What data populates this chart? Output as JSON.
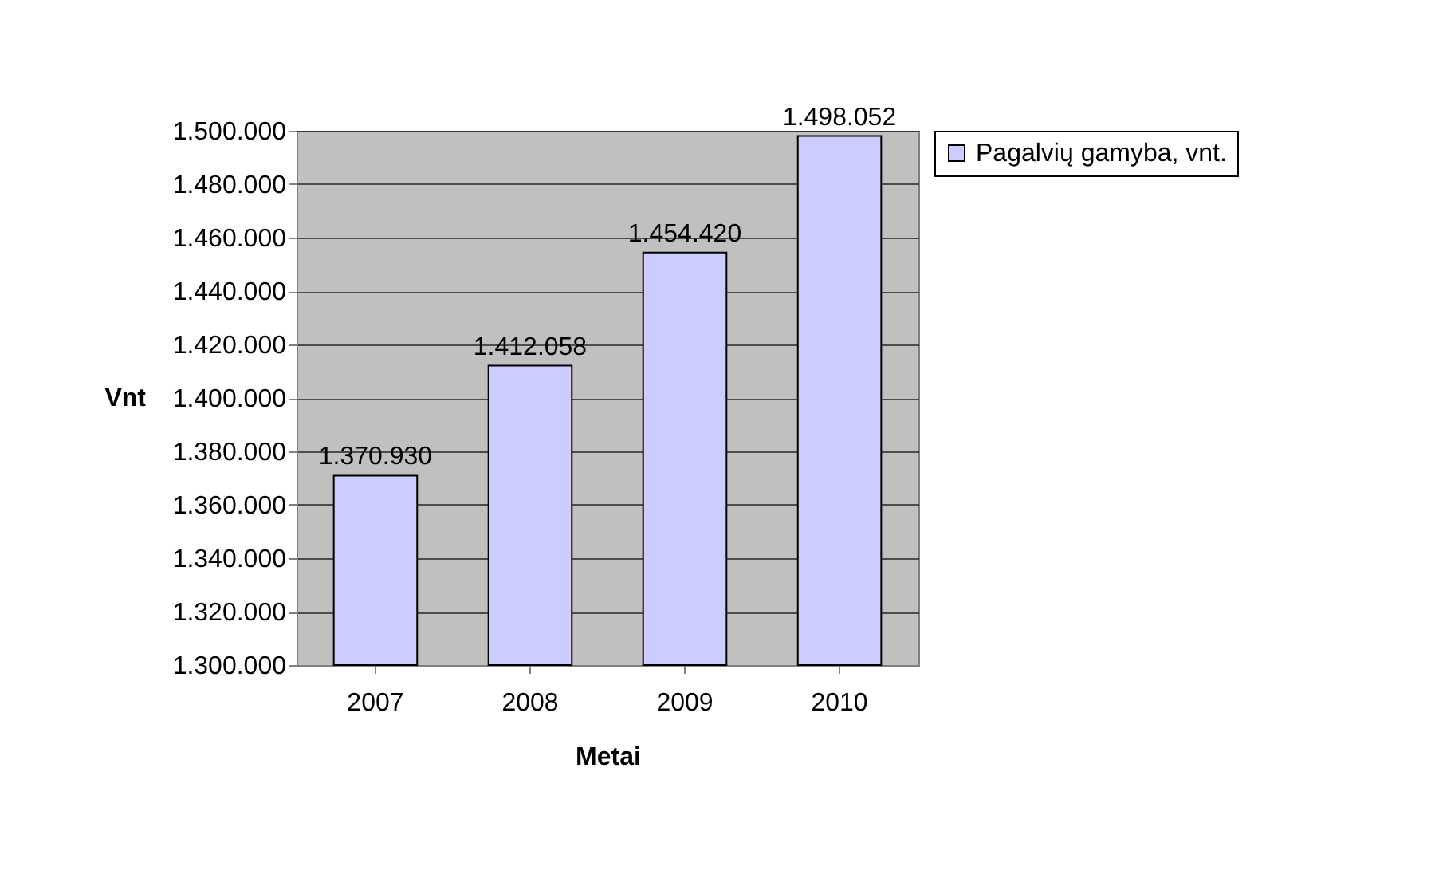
{
  "chart_data": {
    "type": "bar",
    "xlabel": "Metai",
    "ylabel": "Vnt",
    "categories": [
      "2007",
      "2008",
      "2009",
      "2010"
    ],
    "series": [
      {
        "name": "Pagalvių gamyba, vnt.",
        "color": "#ccccff",
        "values": [
          1370930,
          1412058,
          1454420,
          1498052
        ],
        "value_labels": [
          "1.370.930",
          "1.412.058",
          "1.454.420",
          "1.498.052"
        ]
      }
    ],
    "ylim": [
      1300000,
      1500000
    ],
    "yticks": [
      {
        "value": 1300000,
        "label": "1.300.000"
      },
      {
        "value": 1320000,
        "label": "1.320.000"
      },
      {
        "value": 1340000,
        "label": "1.340.000"
      },
      {
        "value": 1360000,
        "label": "1.360.000"
      },
      {
        "value": 1380000,
        "label": "1.380.000"
      },
      {
        "value": 1400000,
        "label": "1.400.000"
      },
      {
        "value": 1420000,
        "label": "1.420.000"
      },
      {
        "value": 1440000,
        "label": "1.440.000"
      },
      {
        "value": 1460000,
        "label": "1.460.000"
      },
      {
        "value": 1480000,
        "label": "1.480.000"
      },
      {
        "value": 1500000,
        "label": "1.500.000"
      }
    ],
    "grid": "y",
    "legend": "right"
  }
}
